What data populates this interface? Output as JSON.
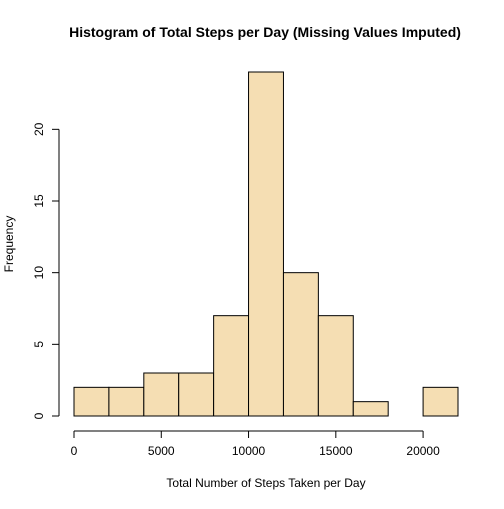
{
  "chart_data": {
    "type": "histogram",
    "title": "Histogram of Total Steps per Day (Missing Values Imputed)",
    "xlabel": "Total Number of Steps Taken per Day",
    "ylabel": "Frequency",
    "bins": [
      {
        "start": 0,
        "end": 2000,
        "count": 2
      },
      {
        "start": 2000,
        "end": 4000,
        "count": 2
      },
      {
        "start": 4000,
        "end": 6000,
        "count": 3
      },
      {
        "start": 6000,
        "end": 8000,
        "count": 3
      },
      {
        "start": 8000,
        "end": 10000,
        "count": 7
      },
      {
        "start": 10000,
        "end": 12000,
        "count": 24
      },
      {
        "start": 12000,
        "end": 14000,
        "count": 10
      },
      {
        "start": 14000,
        "end": 16000,
        "count": 7
      },
      {
        "start": 16000,
        "end": 18000,
        "count": 1
      },
      {
        "start": 18000,
        "end": 20000,
        "count": 0
      },
      {
        "start": 20000,
        "end": 22000,
        "count": 2
      }
    ],
    "xlim": [
      0,
      22000
    ],
    "ylim": [
      0,
      24
    ],
    "x_ticks": [
      0,
      5000,
      10000,
      15000,
      20000
    ],
    "y_ticks": [
      0,
      5,
      10,
      15,
      20
    ],
    "bar_color": "#F5DEB3",
    "bar_edge_color": "#000000",
    "grid": false,
    "legend": "none"
  }
}
